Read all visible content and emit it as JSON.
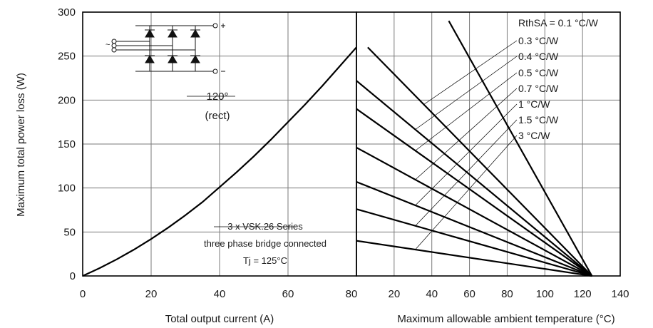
{
  "chart_data": [
    {
      "type": "line",
      "xlabel": "Total output current (A)",
      "ylabel": "Maximum total power loss (W)",
      "xlim": [
        0,
        80
      ],
      "ylim": [
        0,
        300
      ],
      "x_ticks": [
        "0",
        "20",
        "40",
        "60",
        "80"
      ],
      "y_ticks": [
        "0",
        "50",
        "100",
        "150",
        "200",
        "250",
        "300"
      ],
      "grid": true,
      "series": [
        {
          "x": [
            0,
            5,
            10,
            15,
            20,
            25,
            30,
            35,
            40,
            45,
            50,
            55,
            60,
            65,
            70,
            75,
            80
          ],
          "y": [
            0,
            9,
            19,
            30,
            42,
            55,
            69,
            84,
            101,
            118,
            136,
            155,
            175,
            195,
            216,
            238,
            260
          ]
        }
      ],
      "annotations": [
        {
          "text": "120°"
        },
        {
          "text": "(rect)"
        },
        {
          "text": "3 x VSK.26 Series"
        },
        {
          "text": "three phase bridge connected"
        },
        {
          "text": "Tj = 125°C"
        }
      ]
    },
    {
      "type": "line",
      "xlabel": "Maximum allowable ambient temperature (°C)",
      "xlim": [
        0,
        140
      ],
      "x_ticks": [
        "20",
        "40",
        "60",
        "80",
        "100",
        "120",
        "140"
      ],
      "ylim": [
        0,
        300
      ],
      "grid": true,
      "series": [
        {
          "name": "RthSA = 0.1 °C/W",
          "x": [
            49,
            125
          ],
          "y": [
            290,
            0
          ]
        },
        {
          "name": "0.3 °C/W",
          "x": [
            6,
            125
          ],
          "y": [
            260,
            0
          ]
        },
        {
          "name": "0.4 °C/W",
          "x": [
            0,
            125
          ],
          "y": [
            222,
            0
          ]
        },
        {
          "name": "0.5 °C/W",
          "x": [
            0,
            125
          ],
          "y": [
            190,
            0
          ]
        },
        {
          "name": "0.7 °C/W",
          "x": [
            0,
            125
          ],
          "y": [
            146,
            0
          ]
        },
        {
          "name": "1 °C/W",
          "x": [
            0,
            125
          ],
          "y": [
            107,
            0
          ]
        },
        {
          "name": "1.5 °C/W",
          "x": [
            0,
            125
          ],
          "y": [
            76,
            0
          ]
        },
        {
          "name": "3 °C/W",
          "x": [
            0,
            125
          ],
          "y": [
            40,
            0
          ]
        }
      ]
    }
  ]
}
